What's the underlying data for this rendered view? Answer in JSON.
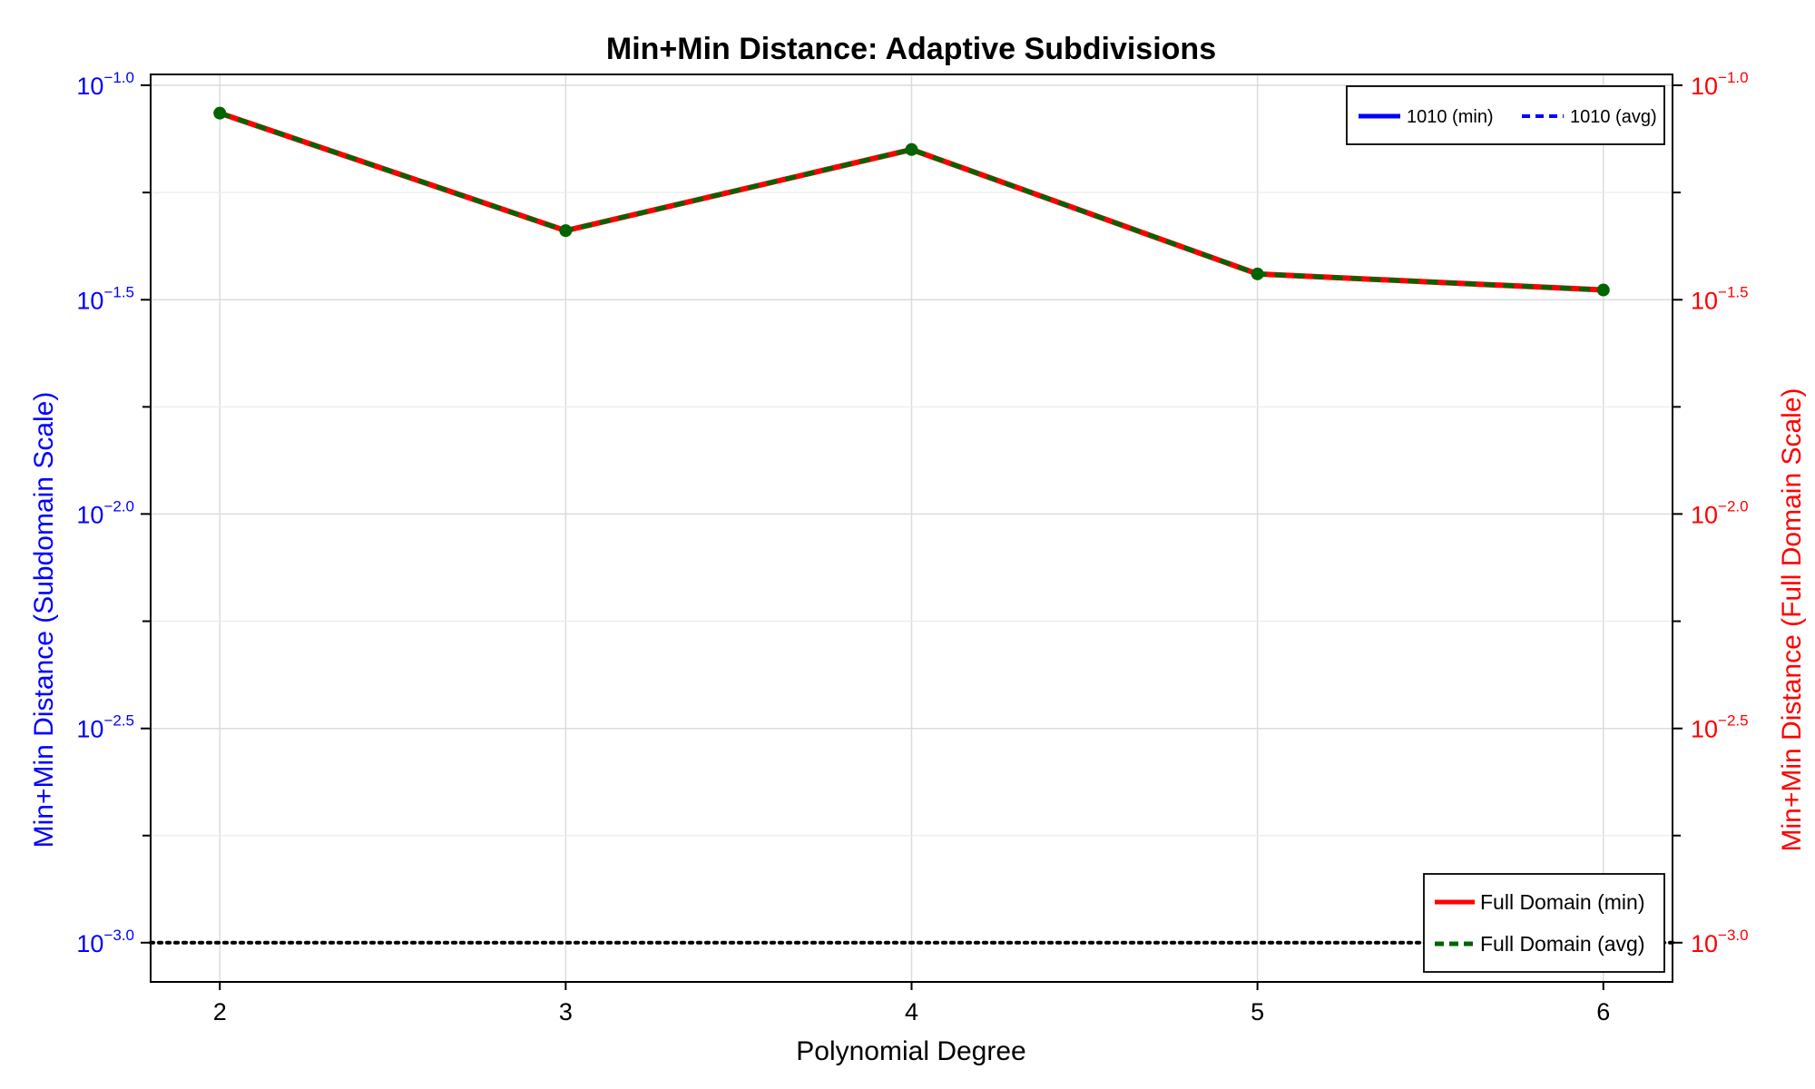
{
  "chart_data": {
    "type": "line",
    "title": "Min+Min Distance: Adaptive Subdivisions",
    "xlabel": "Polynomial Degree",
    "ylabel_left": "Min+Min Distance (Subdomain Scale)",
    "ylabel_right": "Min+Min Distance (Full Domain Scale)",
    "x": [
      2,
      3,
      4,
      5,
      6
    ],
    "x_ticks": [
      "2",
      "3",
      "4",
      "5",
      "6"
    ],
    "xlim": [
      1.8,
      6.2
    ],
    "y_scale": "log10",
    "ylim": [
      0.00081,
      0.106
    ],
    "y_ticks": [
      {
        "value": 0.1,
        "base": "10",
        "exp": "−1.0"
      },
      {
        "value": 0.0316,
        "base": "10",
        "exp": "−1.5"
      },
      {
        "value": 0.01,
        "base": "10",
        "exp": "−2.0"
      },
      {
        "value": 0.00316,
        "base": "10",
        "exp": "−2.5"
      },
      {
        "value": 0.001,
        "base": "10",
        "exp": "−3.0"
      }
    ],
    "reference_line": {
      "y": 0.001,
      "style": "dotted",
      "color": "#000000"
    },
    "series": [
      {
        "name": "Full Domain (min)",
        "axis": "right",
        "color": "#ff0000",
        "style": "solid",
        "values": [
          0.0861,
          0.0458,
          0.0708,
          0.0363,
          0.0333
        ]
      },
      {
        "name": "Full Domain (avg)",
        "axis": "right",
        "color": "#006400",
        "style": "dashed",
        "marker": "circle",
        "values": [
          0.0861,
          0.0458,
          0.0708,
          0.0363,
          0.0333
        ]
      }
    ],
    "legend_top": {
      "placement": "top-right",
      "entries": [
        {
          "name": "1010 (min)",
          "color": "#0000ff",
          "style": "solid"
        },
        {
          "name": "1010 (avg)",
          "color": "#0000ff",
          "style": "dashed"
        }
      ]
    },
    "legend_bottom": {
      "placement": "bottom-right",
      "entries": [
        {
          "name": "Full Domain (min)",
          "color": "#ff0000",
          "style": "solid"
        },
        {
          "name": "Full Domain (avg)",
          "color": "#006400",
          "style": "dashed"
        }
      ]
    },
    "colors": {
      "left_axis": "#0000ff",
      "right_axis": "#ff0000"
    },
    "grid": true
  }
}
